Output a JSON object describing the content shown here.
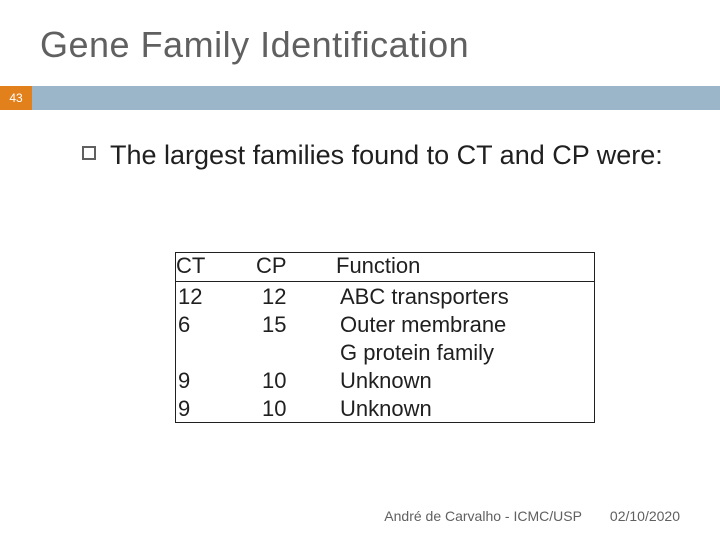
{
  "slide": {
    "title": "Gene Family Identification",
    "number": "43",
    "accent_color": "#e2801c",
    "bar_color": "#9cb6c9",
    "title_color": "#606060",
    "text_color": "#202020",
    "background": "#ffffff"
  },
  "bullet": {
    "text": "The largest families found to CT and CP were:"
  },
  "table": {
    "headers": {
      "ct": "CT",
      "cp": "CP",
      "fn": "Function"
    },
    "rows": [
      {
        "ct": "12",
        "cp": "12",
        "fn": "ABC transporters"
      },
      {
        "ct": "6",
        "cp": "15",
        "fn": "Outer membrane"
      },
      {
        "ct": "",
        "cp": "",
        "fn": "G protein family",
        "sub": true
      },
      {
        "ct": "9",
        "cp": "10",
        "fn": "Unknown"
      },
      {
        "ct": "9",
        "cp": "10",
        "fn": "Unknown"
      }
    ]
  },
  "footer": {
    "author": "André de Carvalho - ICMC/USP",
    "date": "02/10/2020"
  }
}
